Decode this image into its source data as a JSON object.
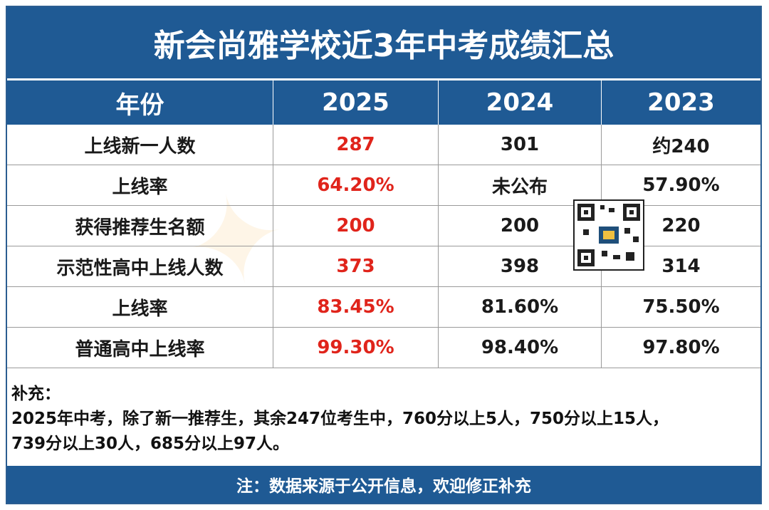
{
  "title": "新会尚雅学校近3年中考成绩汇总",
  "header": [
    "年份",
    "2025",
    "2024",
    "2023"
  ],
  "rows": [
    {
      "label": "上线新一人数",
      "v2025": "287",
      "v2024": "301",
      "v2023": "约240"
    },
    {
      "label": "上线率",
      "v2025": "64.20%",
      "v2024": "未公布",
      "v2023": "57.90%"
    },
    {
      "label": "获得推荐生名额",
      "v2025": "200",
      "v2024": "200",
      "v2023": "220"
    },
    {
      "label": "示范性高中上线人数",
      "v2025": "373",
      "v2024": "398",
      "v2023": "314"
    },
    {
      "label": "上线率",
      "v2025": "83.45%",
      "v2024": "81.60%",
      "v2023": "75.50%"
    },
    {
      "label": "普通高中上线率",
      "v2025": "99.30%",
      "v2024": "98.40%",
      "v2023": "97.80%"
    }
  ],
  "notes": {
    "heading": "补充：",
    "line1": "2025年中考，除了新一推荐生，其余247位考生中，760分以上5人，750分以上15人，",
    "line2": "739分以上30人，685分以上97人。"
  },
  "footer": "注：数据来源于公开信息，欢迎修正补充",
  "colors": {
    "header_bg": "#1f5a94",
    "highlight": "#e0241b"
  }
}
